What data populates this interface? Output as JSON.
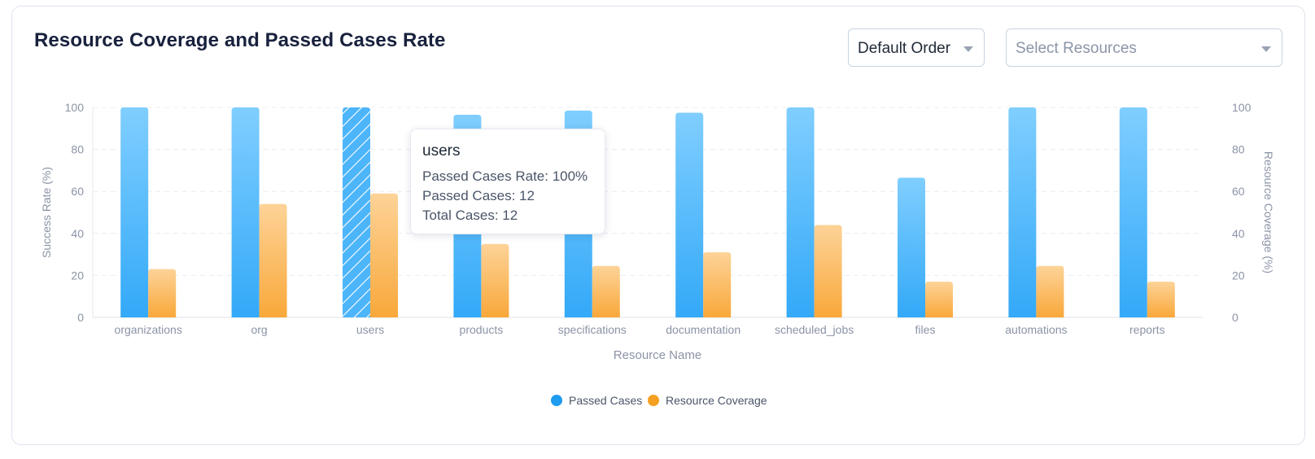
{
  "header": {
    "title": "Resource Coverage and Passed Cases Rate",
    "order_select": "Default Order",
    "resources_placeholder": "Select Resources"
  },
  "colors": {
    "passed_top": "#80ceff",
    "passed_bottom": "#33a9f8",
    "coverage_top": "#fdd398",
    "coverage_bottom": "#f9a83a",
    "legend_passed": "#1f9bf0",
    "legend_coverage": "#f5a020",
    "grid": "#e9ecf2",
    "tick": "#8b93a6"
  },
  "tooltip": {
    "title": "users",
    "lines": [
      "Passed Cases Rate: 100%",
      "Passed Cases: 12",
      "Total Cases: 12"
    ]
  },
  "chart_data": {
    "type": "bar",
    "categories": [
      "organizations",
      "org",
      "users",
      "products",
      "specifications",
      "documentation",
      "scheduled_jobs",
      "files",
      "automations",
      "reports"
    ],
    "series": [
      {
        "name": "Passed Cases",
        "axis": "left",
        "values": [
          100,
          100,
          100,
          96.5,
          98.5,
          97.5,
          100,
          66.5,
          100,
          100
        ]
      },
      {
        "name": "Resource Coverage",
        "axis": "right",
        "values": [
          23,
          54,
          59,
          35,
          24.5,
          31,
          44,
          17,
          24.5,
          17
        ]
      }
    ],
    "highlighted_category": "users",
    "xlabel": "Resource Name",
    "ylabel": "Success Rate (%)",
    "y2label": "Resource Coverage (%)",
    "ylim": [
      0,
      100
    ],
    "y2lim": [
      0,
      100
    ],
    "yticks": [
      0,
      20,
      40,
      60,
      80,
      100
    ],
    "grid": true,
    "legend": "bottom-center"
  }
}
